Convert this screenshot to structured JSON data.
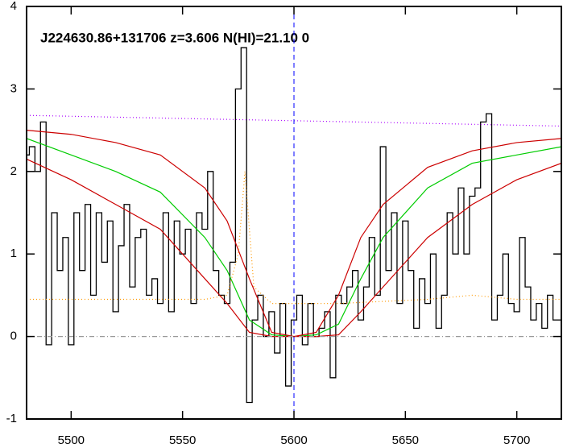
{
  "chart_data": {
    "type": "line",
    "title": "J224630.86+131706 z=3.606 N(HI)=21.10 0",
    "xlim": [
      5480,
      5720
    ],
    "ylim": [
      -1,
      4
    ],
    "xticks": [
      5500,
      5550,
      5600,
      5650,
      5700
    ],
    "yticks": [
      -1,
      0,
      1,
      2,
      3,
      4
    ],
    "vline": {
      "value": 5600,
      "color": "#0000ff",
      "dash": "6,4"
    },
    "series": [
      {
        "color": "#000000",
        "step": true,
        "dash": "none",
        "x": [
          5480,
          5482.5,
          5485,
          5487.5,
          5490,
          5492.5,
          5495,
          5497.5,
          5500,
          5502.5,
          5505,
          5507.5,
          5510,
          5512.5,
          5515,
          5517.5,
          5520,
          5522.5,
          5525,
          5527.5,
          5530,
          5532.5,
          5535,
          5537.5,
          5540,
          5542.5,
          5545,
          5547.5,
          5550,
          5552.5,
          5555,
          5557.5,
          5560,
          5562.5,
          5565,
          5567.5,
          5570,
          5572.5,
          5575,
          5577.5,
          5580,
          5582.5,
          5585,
          5587.5,
          5590,
          5592.5,
          5595,
          5597.5,
          5600,
          5602.5,
          5605,
          5607.5,
          5610,
          5612.5,
          5615,
          5617.5,
          5620,
          5622.5,
          5625,
          5627.5,
          5630,
          5632.5,
          5635,
          5637.5,
          5640,
          5642.5,
          5645,
          5647.5,
          5650,
          5652.5,
          5655,
          5657.5,
          5660,
          5662.5,
          5665,
          5667.5,
          5670,
          5672.5,
          5675,
          5677.5,
          5680,
          5682.5,
          5685,
          5687.5,
          5690,
          5692.5,
          5695,
          5697.5,
          5700,
          5702.5,
          5705,
          5707.5,
          5710,
          5712.5,
          5715,
          5717.5,
          5720
        ],
        "values": [
          2.2,
          2.3,
          2.0,
          2.6,
          -0.1,
          1.5,
          0.8,
          1.2,
          -0.1,
          1.5,
          0.8,
          1.6,
          0.5,
          1.5,
          0.9,
          1.4,
          0.3,
          1.1,
          1.6,
          0.6,
          1.2,
          1.3,
          0.5,
          0.7,
          0.4,
          1.5,
          0.3,
          1.4,
          1.0,
          1.3,
          0.4,
          1.5,
          1.3,
          2.0,
          0.8,
          0.5,
          0.4,
          0.9,
          3.0,
          3.5,
          -0.8,
          0.2,
          0.5,
          0.0,
          0.3,
          -0.2,
          0.4,
          -0.6,
          0.2,
          0.5,
          -0.1,
          0.4,
          0.0,
          0.1,
          0.3,
          -0.5,
          0.5,
          0.4,
          0.6,
          0.8,
          0.2,
          0.6,
          1.2,
          0.5,
          2.3,
          0.8,
          1.5,
          0.4,
          1.4,
          0.8,
          0.1,
          0.7,
          0.4,
          1.0,
          0.1,
          0.5,
          1.5,
          1.0,
          1.8,
          1.0,
          1.7,
          1.8,
          2.6,
          2.7,
          0.2,
          0.5,
          1.0,
          0.4,
          0.3,
          1.2,
          0.6,
          0.2,
          0.4,
          0.1,
          0.5,
          0.2,
          0.2
        ]
      },
      {
        "color": "#00cc00",
        "step": false,
        "dash": "none",
        "x": [
          5480,
          5500,
          5520,
          5540,
          5560,
          5570,
          5580,
          5590,
          5600,
          5610,
          5620,
          5630,
          5640,
          5660,
          5680,
          5700,
          5720
        ],
        "values": [
          2.4,
          2.2,
          2.0,
          1.75,
          1.2,
          0.8,
          0.2,
          0.02,
          0,
          0.02,
          0.15,
          0.7,
          1.2,
          1.8,
          2.1,
          2.2,
          2.3
        ]
      },
      {
        "color": "#cc0000",
        "step": false,
        "dash": "none",
        "x": [
          5480,
          5500,
          5520,
          5540,
          5560,
          5570,
          5580,
          5590,
          5600,
          5610,
          5620,
          5630,
          5640,
          5660,
          5680,
          5700,
          5720
        ],
        "values": [
          2.5,
          2.45,
          2.35,
          2.2,
          1.8,
          1.4,
          0.7,
          0.05,
          0,
          0.05,
          0.5,
          1.2,
          1.6,
          2.05,
          2.25,
          2.35,
          2.4
        ]
      },
      {
        "color": "#cc0000",
        "step": false,
        "dash": "none",
        "x": [
          5480,
          5500,
          5520,
          5540,
          5560,
          5570,
          5580,
          5590,
          5600,
          5610,
          5620,
          5630,
          5640,
          5660,
          5680,
          5700,
          5720
        ],
        "values": [
          2.15,
          1.9,
          1.6,
          1.3,
          0.7,
          0.4,
          0.05,
          0,
          0,
          0,
          0.02,
          0.3,
          0.6,
          1.2,
          1.6,
          1.9,
          2.1
        ]
      },
      {
        "color": "#ff9900",
        "step": false,
        "dash": "1,3",
        "x": [
          5480,
          5520,
          5560,
          5570,
          5575,
          5578,
          5582,
          5590,
          5620,
          5660,
          5680,
          5700,
          5720
        ],
        "values": [
          0.45,
          0.45,
          0.45,
          0.5,
          1.0,
          2.0,
          0.6,
          0.4,
          0.4,
          0.45,
          0.5,
          0.45,
          0.45
        ]
      },
      {
        "color": "#aa00ff",
        "step": false,
        "dash": "1,3",
        "x": [
          5480,
          5720
        ],
        "values": [
          2.68,
          2.55
        ]
      },
      {
        "color": "#999999",
        "step": false,
        "dash": "6,3,1,3",
        "x": [
          5480,
          5720
        ],
        "values": [
          0,
          0
        ]
      }
    ]
  }
}
